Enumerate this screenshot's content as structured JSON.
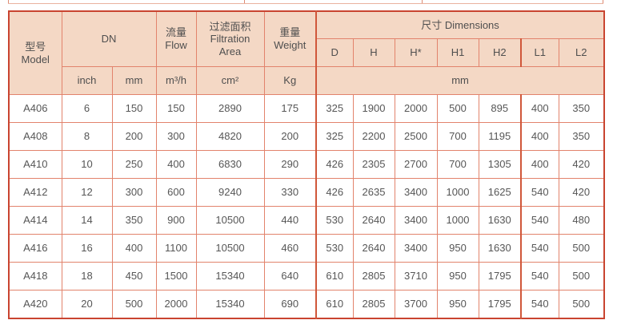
{
  "colors": {
    "header_bg": "#f4d8c5",
    "row_bg": "#ffffff",
    "grid_line": "#e2836c",
    "strong_line": "#d0573a",
    "outer_border": "#c94430",
    "text": "#4f4f4f",
    "remnant_line": "#eab19f",
    "remnant_tick": "#dd8a72"
  },
  "table": {
    "header": {
      "model_zh": "型号",
      "model_en": "Model",
      "dn": "DN",
      "flow_zh": "流量",
      "flow_en": "Flow",
      "filtration_zh": "过滤面积",
      "filtration_en": "Filtration Area",
      "weight_zh": "重量",
      "weight_en": "Weight",
      "dimensions": "尺寸 Dimensions",
      "dim_cols": [
        "D",
        "H",
        "H*",
        "H1",
        "H2",
        "L1",
        "L2"
      ],
      "units": {
        "inch": "inch",
        "mm": "mm",
        "flow": "m³/h",
        "area": "cm²",
        "weight": "Kg",
        "dims": "mm"
      }
    },
    "rows": [
      {
        "model": "A406",
        "values": [
          "6",
          "150",
          "150",
          "2890",
          "175",
          "325",
          "1900",
          "2000",
          "500",
          "895",
          "400",
          "350"
        ]
      },
      {
        "model": "A408",
        "values": [
          "8",
          "200",
          "300",
          "4820",
          "200",
          "325",
          "2200",
          "2500",
          "700",
          "1195",
          "400",
          "350"
        ]
      },
      {
        "model": "A410",
        "values": [
          "10",
          "250",
          "400",
          "6830",
          "290",
          "426",
          "2305",
          "2700",
          "700",
          "1305",
          "400",
          "420"
        ]
      },
      {
        "model": "A412",
        "values": [
          "12",
          "300",
          "600",
          "9240",
          "330",
          "426",
          "2635",
          "3400",
          "1000",
          "1625",
          "540",
          "420"
        ]
      },
      {
        "model": "A414",
        "values": [
          "14",
          "350",
          "900",
          "10500",
          "440",
          "530",
          "2640",
          "3400",
          "1000",
          "1630",
          "540",
          "480"
        ]
      },
      {
        "model": "A416",
        "values": [
          "16",
          "400",
          "1100",
          "10500",
          "460",
          "530",
          "2640",
          "3400",
          "950",
          "1630",
          "540",
          "500"
        ]
      },
      {
        "model": "A418",
        "values": [
          "18",
          "450",
          "1500",
          "15340",
          "640",
          "610",
          "2805",
          "3710",
          "950",
          "1795",
          "540",
          "500"
        ]
      },
      {
        "model": "A420",
        "values": [
          "20",
          "500",
          "2000",
          "15340",
          "690",
          "610",
          "2805",
          "3700",
          "950",
          "1795",
          "540",
          "500"
        ]
      }
    ]
  }
}
